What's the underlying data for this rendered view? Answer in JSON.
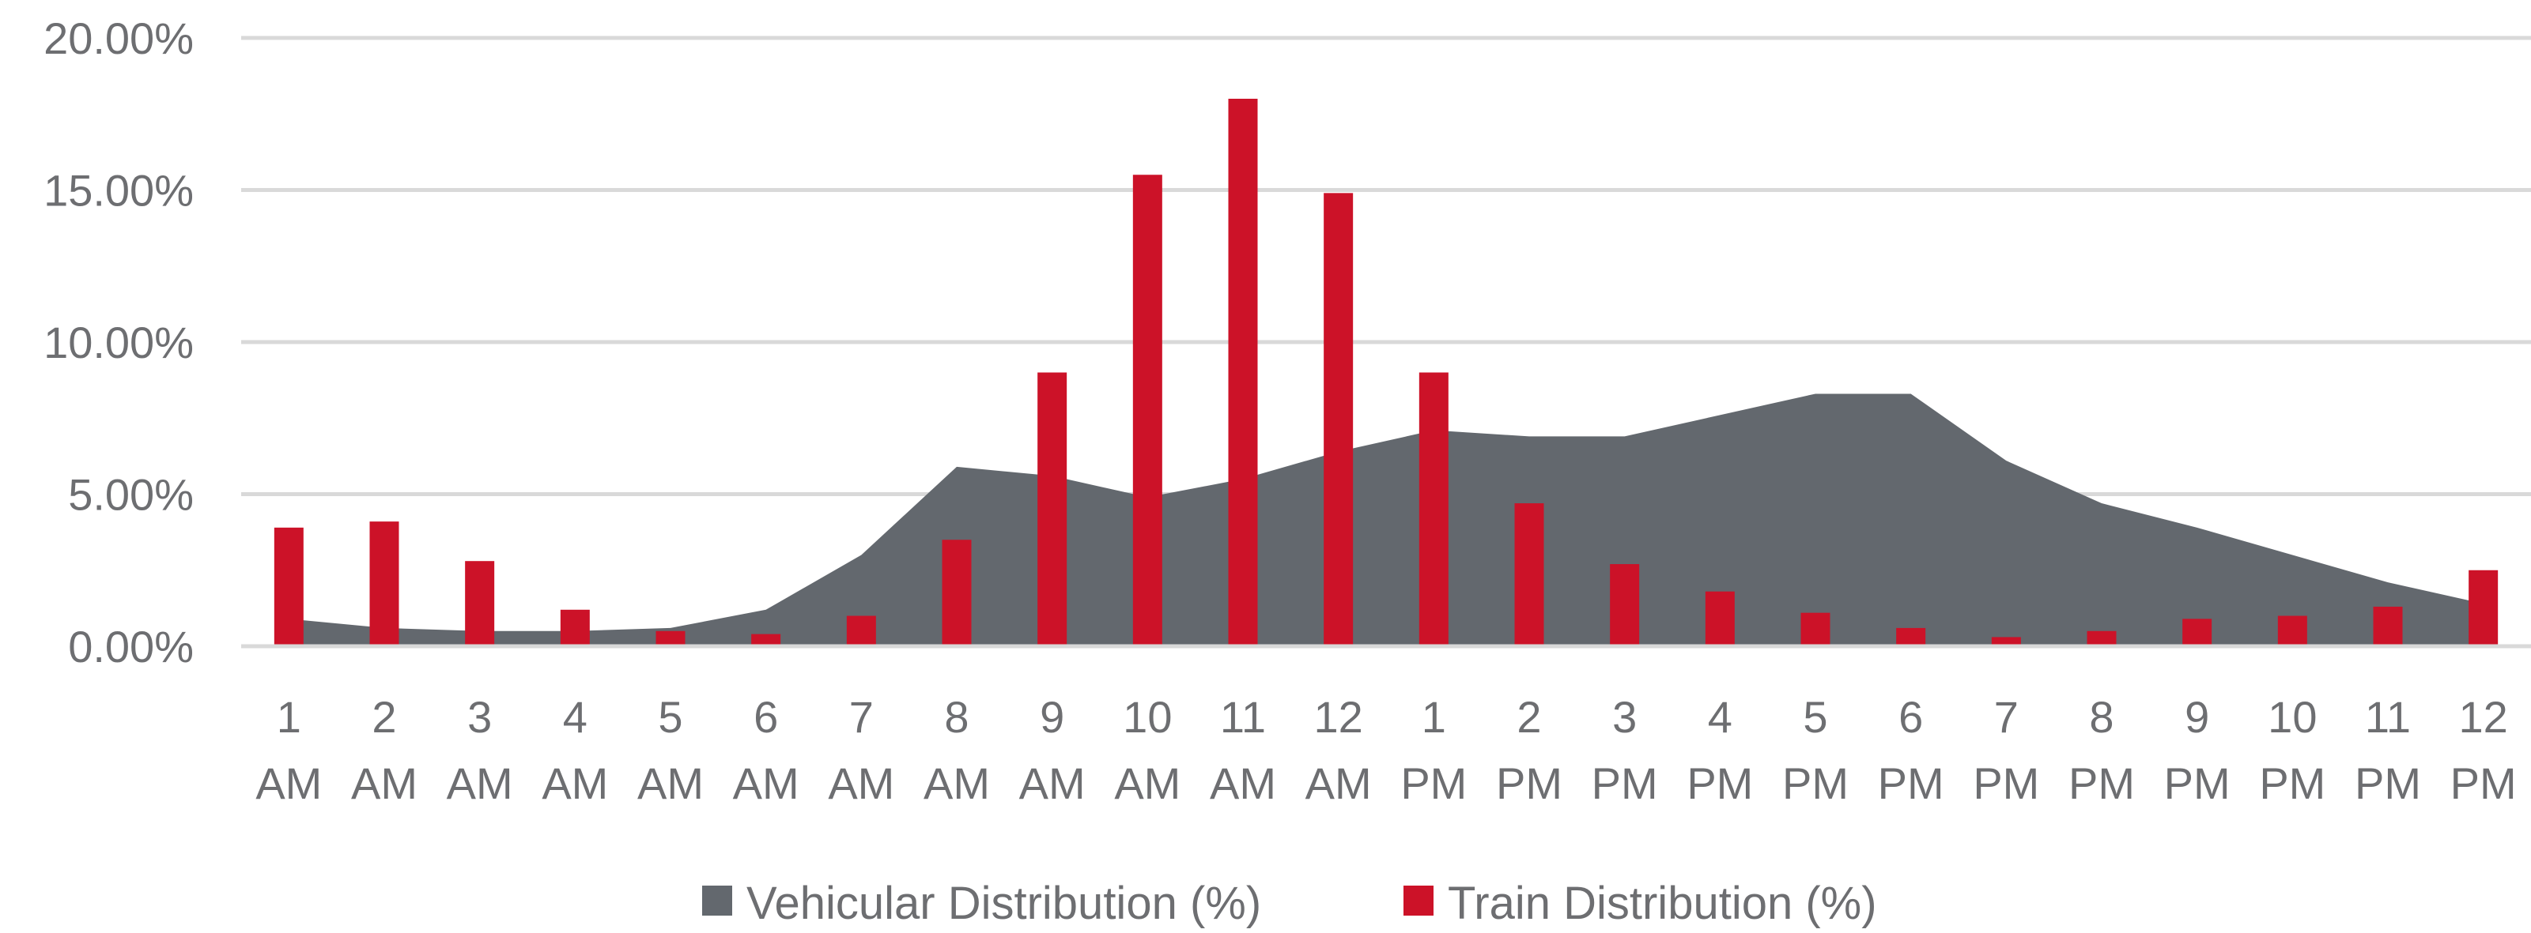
{
  "chart_data": {
    "type": "bar",
    "categories": [
      [
        "1",
        "AM"
      ],
      [
        "2",
        "AM"
      ],
      [
        "3",
        "AM"
      ],
      [
        "4",
        "AM"
      ],
      [
        "5",
        "AM"
      ],
      [
        "6",
        "AM"
      ],
      [
        "7",
        "AM"
      ],
      [
        "8",
        "AM"
      ],
      [
        "9",
        "AM"
      ],
      [
        "10",
        "AM"
      ],
      [
        "11",
        "AM"
      ],
      [
        "12",
        "AM"
      ],
      [
        "1",
        "PM"
      ],
      [
        "2",
        "PM"
      ],
      [
        "3",
        "PM"
      ],
      [
        "4",
        "PM"
      ],
      [
        "5",
        "PM"
      ],
      [
        "6",
        "PM"
      ],
      [
        "7",
        "PM"
      ],
      [
        "8",
        "PM"
      ],
      [
        "9",
        "PM"
      ],
      [
        "10",
        "PM"
      ],
      [
        "11",
        "PM"
      ],
      [
        "12",
        "PM"
      ]
    ],
    "series": [
      {
        "name": "Vehicular Distribution (%)",
        "kind": "area",
        "color": "#63686e",
        "values": [
          0.9,
          0.6,
          0.5,
          0.5,
          0.6,
          1.2,
          3.0,
          5.9,
          5.6,
          4.9,
          5.5,
          6.4,
          7.1,
          6.9,
          6.9,
          7.6,
          8.3,
          8.3,
          6.1,
          4.7,
          3.9,
          3.0,
          2.1,
          1.4
        ]
      },
      {
        "name": "Train Distribution (%)",
        "kind": "bar",
        "color": "#cc1228",
        "values": [
          3.9,
          4.1,
          2.8,
          1.2,
          0.5,
          0.4,
          1.0,
          3.5,
          9.0,
          15.5,
          18.0,
          14.9,
          9.0,
          4.7,
          2.7,
          1.8,
          1.1,
          0.6,
          0.3,
          0.5,
          0.9,
          1.0,
          1.3,
          2.5
        ]
      }
    ],
    "ylim": [
      0,
      20
    ],
    "yticks": [
      "0.00%",
      "5.00%",
      "10.00%",
      "15.00%",
      "20.00%"
    ],
    "grid": true,
    "legend_position": "bottom"
  }
}
